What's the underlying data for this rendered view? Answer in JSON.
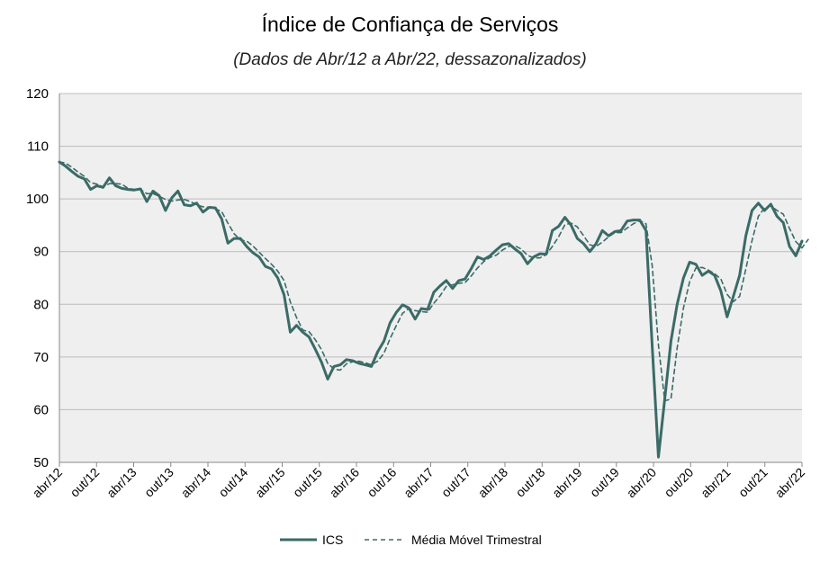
{
  "chart_data": {
    "type": "line",
    "title": "Índice de Confiança de Serviços",
    "subtitle": "(Dados de Abr/12 a Abr/22, dessazonalizados)",
    "xlabel": "",
    "ylabel": "",
    "ylim": [
      50,
      120
    ],
    "yticks": [
      50,
      60,
      70,
      80,
      90,
      100,
      110,
      120
    ],
    "grid": true,
    "legend_position": "bottom",
    "x_tick_labels": [
      "abr/12",
      "out/12",
      "abr/13",
      "out/13",
      "abr/14",
      "out/14",
      "abr/15",
      "out/15",
      "abr/16",
      "out/16",
      "abr/17",
      "out/17",
      "abr/18",
      "out/18",
      "abr/19",
      "out/19",
      "abr/20",
      "out/20",
      "abr/21",
      "out/21",
      "abr/22"
    ],
    "colors": {
      "series": "#3a6b67",
      "plot_bg": "#efefef",
      "grid": "#bcbcbc"
    },
    "series": [
      {
        "name": "ICS",
        "style": "solid",
        "values": [
          107.0,
          106.2,
          105.2,
          104.3,
          103.8,
          101.8,
          102.5,
          102.2,
          104.0,
          102.5,
          102.0,
          101.8,
          101.7,
          101.9,
          99.5,
          101.5,
          100.6,
          97.8,
          100.2,
          101.5,
          98.9,
          98.7,
          99.2,
          97.5,
          98.4,
          98.3,
          96.2,
          91.6,
          92.5,
          92.5,
          91.0,
          89.8,
          89.0,
          87.2,
          86.7,
          85.0,
          81.8,
          74.7,
          76.0,
          74.7,
          73.8,
          71.5,
          69.0,
          65.8,
          68.2,
          68.5,
          69.5,
          69.3,
          68.8,
          68.5,
          68.2,
          71.0,
          73.0,
          76.5,
          78.5,
          79.9,
          79.3,
          77.2,
          79.2,
          79.0,
          82.3,
          83.5,
          84.5,
          83.0,
          84.5,
          84.8,
          86.8,
          89.0,
          88.5,
          89.2,
          90.3,
          91.3,
          91.5,
          90.5,
          89.6,
          87.7,
          89.0,
          89.6,
          89.5,
          94.0,
          94.8,
          96.5,
          95.0,
          92.5,
          91.5,
          90.0,
          91.5,
          94.0,
          93.0,
          93.8,
          94.0,
          95.8,
          96.0,
          96.0,
          94.0,
          72.0,
          51.0,
          62.0,
          73.0,
          80.0,
          85.0,
          88.0,
          87.6,
          85.5,
          86.3,
          85.5,
          82.5,
          77.6,
          81.5,
          85.5,
          93.0,
          97.8,
          99.2,
          97.8,
          99.0,
          96.7,
          95.5,
          91.0,
          89.2,
          92.0
        ]
      },
      {
        "name": "Média Móvel Trimestral",
        "style": "dashed",
        "values": [
          107.0,
          106.8,
          106.0,
          105.1,
          104.3,
          103.1,
          102.8,
          102.3,
          102.9,
          102.9,
          102.8,
          102.0,
          101.8,
          101.8,
          101.0,
          101.0,
          100.5,
          99.9,
          99.6,
          99.8,
          99.9,
          99.5,
          98.9,
          98.5,
          98.4,
          98.1,
          97.6,
          95.4,
          93.4,
          92.2,
          92.0,
          91.1,
          89.9,
          88.7,
          87.6,
          86.3,
          84.5,
          80.5,
          77.5,
          75.1,
          74.8,
          73.3,
          71.4,
          68.8,
          67.7,
          67.5,
          68.7,
          69.1,
          69.2,
          68.9,
          68.5,
          69.2,
          70.7,
          73.5,
          76.0,
          78.3,
          79.2,
          78.8,
          78.6,
          78.5,
          80.2,
          81.6,
          83.4,
          83.7,
          84.0,
          84.1,
          85.4,
          86.9,
          88.1,
          88.9,
          89.3,
          90.3,
          91.0,
          91.1,
          90.5,
          89.3,
          88.8,
          88.8,
          89.4,
          91.0,
          92.8,
          95.1,
          95.4,
          94.7,
          93.0,
          91.3,
          91.0,
          91.8,
          92.8,
          93.6,
          93.6,
          94.5,
          95.3,
          95.9,
          95.3,
          87.3,
          72.3,
          61.7,
          62.0,
          71.7,
          79.3,
          84.3,
          86.9,
          87.0,
          86.5,
          85.8,
          84.8,
          81.9,
          80.5,
          81.5,
          86.7,
          92.1,
          96.7,
          98.3,
          98.7,
          97.8,
          97.1,
          94.4,
          91.9,
          90.7,
          92.3
        ]
      }
    ]
  }
}
